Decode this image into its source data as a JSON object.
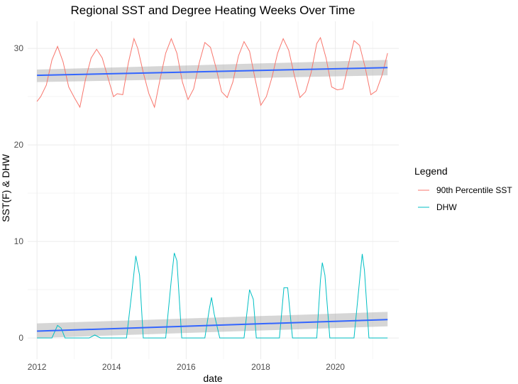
{
  "chart_data": {
    "type": "line",
    "title": "Regional SST and Degree Heating Weeks Over Time",
    "xlabel": "date",
    "ylabel": "SST(F) & DHW",
    "xlim": [
      2011.75,
      2021.7
    ],
    "ylim": [
      -2.2,
      32.8
    ],
    "x_ticks": [
      2012,
      2014,
      2016,
      2018,
      2020
    ],
    "x_tick_labels": [
      "2012",
      "2014",
      "2016",
      "2018",
      "2020"
    ],
    "y_ticks": [
      0,
      10,
      20,
      30
    ],
    "y_tick_labels": [
      "0",
      "10",
      "20",
      "30"
    ],
    "grid": true,
    "legend": {
      "title": "Legend",
      "placement": "right",
      "entries": [
        "90th Percentile SST",
        "DHW"
      ]
    },
    "series": [
      {
        "name": "90th Percentile SST",
        "color": "#F8766D",
        "points": [
          [
            2012.0,
            24.5
          ],
          [
            2012.1,
            25.0
          ],
          [
            2012.25,
            26.2
          ],
          [
            2012.4,
            28.8
          ],
          [
            2012.55,
            30.2
          ],
          [
            2012.7,
            28.6
          ],
          [
            2012.85,
            26.0
          ],
          [
            2013.0,
            24.9
          ],
          [
            2013.15,
            23.9
          ],
          [
            2013.3,
            26.8
          ],
          [
            2013.45,
            29.0
          ],
          [
            2013.6,
            29.9
          ],
          [
            2013.75,
            29.0
          ],
          [
            2013.9,
            27.0
          ],
          [
            2014.05,
            25.0
          ],
          [
            2014.15,
            25.3
          ],
          [
            2014.3,
            25.2
          ],
          [
            2014.45,
            28.5
          ],
          [
            2014.6,
            31.0
          ],
          [
            2014.7,
            30.0
          ],
          [
            2014.85,
            27.5
          ],
          [
            2015.0,
            25.3
          ],
          [
            2015.15,
            23.9
          ],
          [
            2015.3,
            26.8
          ],
          [
            2015.45,
            29.5
          ],
          [
            2015.6,
            31.0
          ],
          [
            2015.75,
            29.5
          ],
          [
            2015.9,
            26.5
          ],
          [
            2016.05,
            24.7
          ],
          [
            2016.2,
            25.8
          ],
          [
            2016.35,
            28.5
          ],
          [
            2016.5,
            30.6
          ],
          [
            2016.65,
            30.1
          ],
          [
            2016.8,
            28.0
          ],
          [
            2016.95,
            25.5
          ],
          [
            2017.1,
            24.9
          ],
          [
            2017.25,
            26.5
          ],
          [
            2017.4,
            29.2
          ],
          [
            2017.55,
            30.7
          ],
          [
            2017.7,
            29.7
          ],
          [
            2017.85,
            26.8
          ],
          [
            2018.0,
            24.1
          ],
          [
            2018.15,
            25.0
          ],
          [
            2018.3,
            27.0
          ],
          [
            2018.45,
            29.5
          ],
          [
            2018.6,
            31.0
          ],
          [
            2018.75,
            29.8
          ],
          [
            2018.9,
            27.2
          ],
          [
            2019.05,
            24.9
          ],
          [
            2019.2,
            25.5
          ],
          [
            2019.35,
            27.5
          ],
          [
            2019.5,
            30.5
          ],
          [
            2019.6,
            31.1
          ],
          [
            2019.75,
            29.0
          ],
          [
            2019.9,
            26.0
          ],
          [
            2020.05,
            25.7
          ],
          [
            2020.2,
            25.8
          ],
          [
            2020.3,
            27.5
          ],
          [
            2020.5,
            30.8
          ],
          [
            2020.65,
            30.3
          ],
          [
            2020.8,
            28.0
          ],
          [
            2020.95,
            25.2
          ],
          [
            2021.1,
            25.6
          ],
          [
            2021.25,
            27.2
          ],
          [
            2021.4,
            29.5
          ]
        ],
        "trend": {
          "color": "#3366FF",
          "start": [
            2012.0,
            27.2
          ],
          "end": [
            2021.4,
            28.0
          ],
          "ci_start": [
            26.5,
            27.8
          ],
          "ci_end": [
            27.2,
            28.8
          ]
        }
      },
      {
        "name": "DHW",
        "color": "#00BFC4",
        "points": [
          [
            2012.0,
            0
          ],
          [
            2012.4,
            0
          ],
          [
            2012.55,
            1.3
          ],
          [
            2012.65,
            1.0
          ],
          [
            2012.75,
            0
          ],
          [
            2013.4,
            0
          ],
          [
            2013.55,
            0.3
          ],
          [
            2013.7,
            0
          ],
          [
            2014.4,
            0
          ],
          [
            2014.55,
            5.0
          ],
          [
            2014.65,
            8.5
          ],
          [
            2014.75,
            6.5
          ],
          [
            2014.85,
            0
          ],
          [
            2015.45,
            0
          ],
          [
            2015.6,
            6.0
          ],
          [
            2015.68,
            8.8
          ],
          [
            2015.75,
            8.0
          ],
          [
            2015.88,
            0
          ],
          [
            2016.5,
            0
          ],
          [
            2016.62,
            3.0
          ],
          [
            2016.68,
            4.2
          ],
          [
            2016.75,
            2.5
          ],
          [
            2016.9,
            0
          ],
          [
            2017.55,
            0
          ],
          [
            2017.7,
            5.0
          ],
          [
            2017.8,
            4.0
          ],
          [
            2017.88,
            0
          ],
          [
            2018.5,
            0
          ],
          [
            2018.62,
            5.2
          ],
          [
            2018.72,
            5.2
          ],
          [
            2018.85,
            0
          ],
          [
            2019.5,
            0
          ],
          [
            2019.6,
            6.0
          ],
          [
            2019.65,
            7.8
          ],
          [
            2019.72,
            6.5
          ],
          [
            2019.85,
            0
          ],
          [
            2020.5,
            0
          ],
          [
            2020.65,
            6.0
          ],
          [
            2020.72,
            8.7
          ],
          [
            2020.78,
            7.0
          ],
          [
            2020.9,
            0
          ],
          [
            2021.4,
            0
          ]
        ],
        "trend": {
          "color": "#3366FF",
          "start": [
            2012.0,
            0.7
          ],
          "end": [
            2021.4,
            1.9
          ],
          "ci_start": [
            0.0,
            1.5
          ],
          "ci_end": [
            1.2,
            2.7
          ]
        }
      }
    ]
  }
}
